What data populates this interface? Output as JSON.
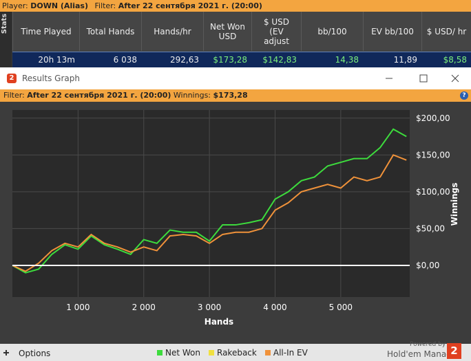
{
  "top_bar": {
    "player_label": "Player:",
    "player": "DOWN (Alias)",
    "filter_label": "Filter:",
    "filter": "After 22 сентября 2021 г. (20:00)"
  },
  "side_tab": "Stats",
  "stats_table": {
    "headers": [
      "Time Played",
      "Total Hands",
      "Hands/hr",
      "Net Won USD",
      "$ USD (EV adjust",
      "bb/100",
      "EV bb/100",
      "$ USD/ hr"
    ],
    "rows": [
      [
        "20h 13m",
        "6 038",
        "292,63",
        "$173,28",
        "$142,83",
        "14,38",
        "11,89",
        "$8,58"
      ]
    ]
  },
  "window": {
    "icon": "2",
    "title": "Results Graph",
    "filter_label": "Filter:",
    "filter": "After 22 сентября 2021 г. (20:00)",
    "winnings_label": "Winnings:",
    "winnings": "$173,28",
    "help": "?"
  },
  "chart_data": {
    "type": "line",
    "x_label": "Hands",
    "y_label": "Winnings",
    "x": [
      0,
      200,
      400,
      600,
      800,
      1000,
      1200,
      1400,
      1600,
      1800,
      2000,
      2200,
      2400,
      2600,
      2800,
      3000,
      3200,
      3400,
      3600,
      3800,
      4000,
      4200,
      4400,
      4600,
      4800,
      5000,
      5200,
      5400,
      5600,
      5800,
      6000
    ],
    "series": [
      {
        "name": "Net Won",
        "color": "#3ddc3d",
        "values": [
          0,
          -10,
          -5,
          15,
          28,
          22,
          40,
          28,
          22,
          15,
          35,
          30,
          48,
          45,
          45,
          33,
          55,
          55,
          58,
          62,
          90,
          100,
          115,
          120,
          135,
          140,
          145,
          145,
          160,
          185,
          175
        ]
      },
      {
        "name": "Rakeback",
        "color": "#f0e040",
        "values": [
          0,
          0,
          0,
          0,
          0,
          0,
          0,
          0,
          0,
          0,
          0,
          0,
          0,
          0,
          0,
          0,
          0,
          0,
          0,
          0,
          0,
          0,
          0,
          0,
          0,
          0,
          0,
          0,
          0,
          0,
          0
        ]
      },
      {
        "name": "All-In EV",
        "color": "#f0923a",
        "values": [
          0,
          -8,
          3,
          20,
          30,
          25,
          42,
          30,
          25,
          18,
          25,
          20,
          40,
          42,
          40,
          30,
          42,
          45,
          45,
          50,
          75,
          85,
          100,
          105,
          110,
          105,
          120,
          115,
          120,
          150,
          143
        ]
      }
    ],
    "xlim": [
      0,
      6050
    ],
    "ylim": [
      -43,
      211
    ],
    "xticks": [
      {
        "value": 1000,
        "label": "1 000"
      },
      {
        "value": 2000,
        "label": "2 000"
      },
      {
        "value": 3000,
        "label": "3 000"
      },
      {
        "value": 4000,
        "label": "4 000"
      },
      {
        "value": 5000,
        "label": "5 000"
      }
    ],
    "yticks": [
      {
        "value": 0,
        "label": "$0,00"
      },
      {
        "value": 50,
        "label": "$50,00"
      },
      {
        "value": 100,
        "label": "$100,00"
      },
      {
        "value": 150,
        "label": "$150,00"
      },
      {
        "value": 200,
        "label": "$200,00"
      }
    ],
    "grid": true
  },
  "footer": {
    "options": "Options",
    "powered_by": "Powered by",
    "brand": "Hold'em Manager",
    "logo": "2"
  }
}
